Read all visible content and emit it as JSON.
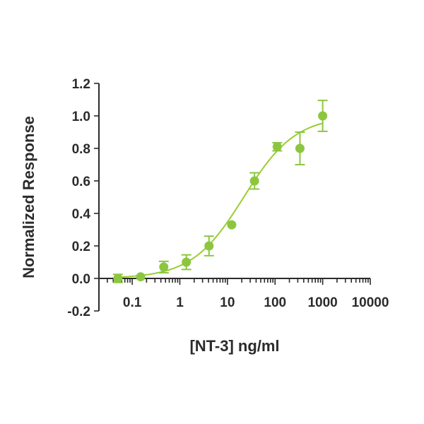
{
  "colors": {
    "series": "#8cc63f",
    "curve": "#9acd32",
    "axis": "#2b2b2b"
  },
  "chart_data": {
    "type": "scatter",
    "xlabel": "[NT-3] ng/ml",
    "ylabel": "Normalized Response",
    "xscale": "log",
    "xlim": [
      0.02,
      10000
    ],
    "ylim": [
      -0.2,
      1.2
    ],
    "x_ticks": [
      0.1,
      1,
      10,
      100,
      1000,
      10000
    ],
    "x_tick_labels": [
      "0.1",
      "1",
      "10",
      "100",
      "1000",
      "10000"
    ],
    "y_ticks": [
      -0.2,
      0.0,
      0.2,
      0.4,
      0.6,
      0.8,
      1.0,
      1.2
    ],
    "y_tick_labels": [
      "-0.2",
      "0.0",
      "0.2",
      "0.4",
      "0.6",
      "0.8",
      "1.0",
      "1.2"
    ],
    "grid": false,
    "legend": "none",
    "series": [
      {
        "x": [
          0.05,
          0.15,
          0.46,
          1.37,
          4.1,
          12.3,
          37,
          111,
          333,
          1000
        ],
        "y": [
          0.0,
          0.01,
          0.07,
          0.1,
          0.2,
          0.33,
          0.6,
          0.81,
          0.8,
          1.0
        ],
        "error": [
          0.025,
          0.0,
          0.035,
          0.045,
          0.06,
          0.0,
          0.05,
          0.025,
          0.1,
          0.095
        ]
      }
    ],
    "fit_curve": {
      "model": "4PL",
      "bottom": 0.0,
      "top": 1.0,
      "ec50": 22,
      "hill": 0.8,
      "x_range": [
        0.05,
        1000
      ]
    }
  }
}
